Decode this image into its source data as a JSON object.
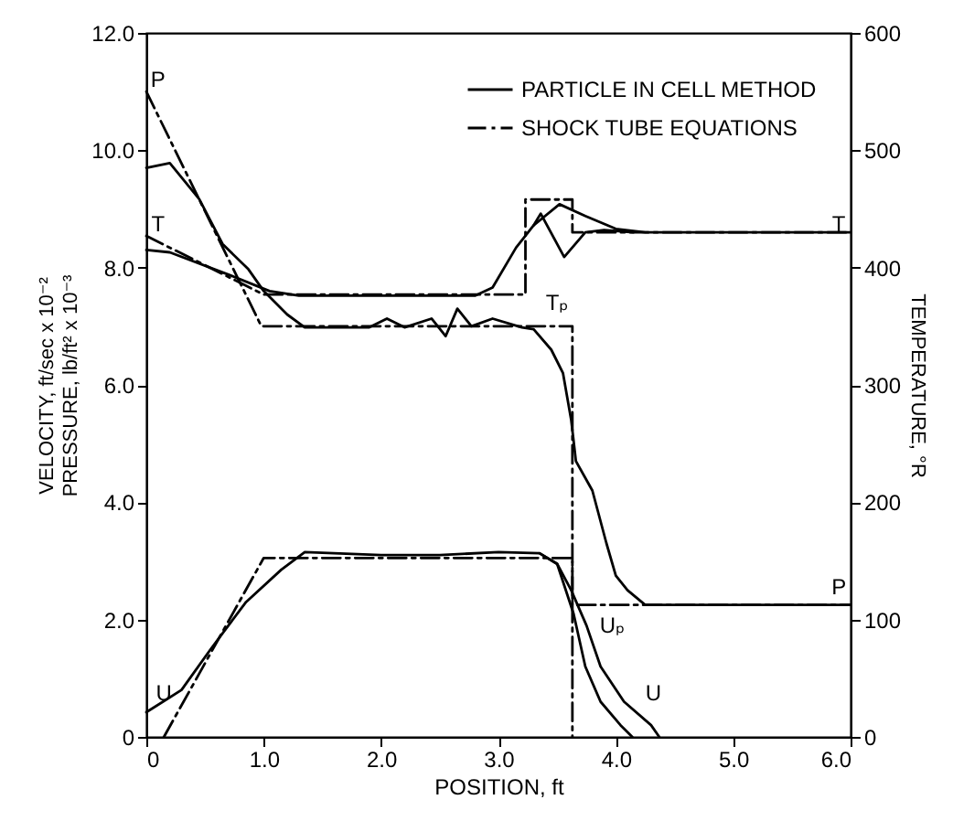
{
  "chart_data": {
    "type": "line",
    "xlabel": "POSITION, ft",
    "ylabel": "VELOCITY, ft/sec x 10⁻²\nPRESSURE, lb/ft² x 10⁻³",
    "y2label": "TEMPERATURE, °R",
    "xlim": [
      0,
      6
    ],
    "xticks": [
      0,
      {
        "value": 1,
        "label": "1.0"
      },
      {
        "value": 2,
        "label": "2.0"
      },
      {
        "value": 3,
        "label": "3.0"
      },
      {
        "value": 4,
        "label": "4.0"
      },
      {
        "value": 5,
        "label": "5.0"
      },
      {
        "value": 6,
        "label": "6.0"
      }
    ],
    "ylim": [
      0,
      12
    ],
    "yticks": [
      0,
      {
        "value": 2,
        "label": "2.0"
      },
      {
        "value": 4,
        "label": "4.0"
      },
      {
        "value": 6,
        "label": "6.0"
      },
      {
        "value": 8,
        "label": "8.0"
      },
      {
        "value": 10,
        "label": "10.0"
      },
      {
        "value": 12,
        "label": "12.0"
      }
    ],
    "y2lim": [
      0,
      600
    ],
    "y2ticks": [
      0,
      100,
      200,
      300,
      400,
      500,
      600
    ],
    "grid": false,
    "legend": "top right",
    "series": [
      {
        "name": "PARTICLE IN CELL METHOD",
        "color": "#000000",
        "line_style": "solid",
        "x": [
          0,
          0.2,
          0.45,
          0.65,
          0.87,
          1.0,
          1.2,
          1.35,
          1.9,
          2.05,
          2.2,
          2.43,
          2.55,
          2.65,
          2.77,
          2.95,
          3.2,
          3.3,
          3.45,
          3.55,
          3.62,
          3.66,
          3.8,
          3.92,
          4.0,
          4.1,
          4.25,
          6.0
        ],
        "values": [
          9.7,
          9.78,
          9.17,
          8.4,
          7.97,
          7.6,
          7.2,
          6.98,
          6.98,
          7.13,
          6.98,
          7.13,
          6.83,
          7.3,
          7.0,
          7.13,
          6.98,
          6.95,
          6.6,
          6.2,
          5.4,
          4.7,
          4.2,
          3.3,
          2.75,
          2.5,
          2.25,
          2.25
        ]
      },
      {
        "color": "#000000",
        "line_style": "solid",
        "axis": "y2",
        "x": [
          0,
          0.2,
          0.7,
          1.05,
          1.3,
          2.8,
          2.95,
          3.15,
          3.3,
          3.52,
          3.74,
          4.0,
          4.25,
          6.0
        ],
        "values": [
          415,
          413,
          394,
          380,
          376,
          376,
          383,
          417,
          436,
          454,
          444,
          433,
          430,
          430
        ]
      },
      {
        "color": "#000000",
        "line_style": "solid",
        "axis": "y2",
        "x": [
          3.3,
          3.36,
          3.56,
          3.74,
          3.9,
          4.15
        ],
        "values": [
          436,
          446,
          409,
          430,
          432,
          430
        ]
      },
      {
        "color": "#000000",
        "line_style": "solid",
        "x": [
          0,
          0.3,
          0.55,
          0.85,
          1.15,
          1.35,
          2.0,
          2.5,
          3.0,
          3.35,
          3.5,
          3.62,
          3.75,
          3.87,
          4.07,
          4.3,
          4.37
        ],
        "values": [
          0.42,
          0.8,
          1.5,
          2.3,
          2.85,
          3.15,
          3.1,
          3.1,
          3.15,
          3.13,
          2.95,
          2.5,
          1.9,
          1.2,
          0.6,
          0.2,
          0
        ]
      },
      {
        "color": "#000000",
        "line_style": "solid",
        "x": [
          3.35,
          3.5,
          3.64,
          3.74,
          3.87,
          4.04,
          4.14
        ],
        "values": [
          3.13,
          2.95,
          2.1,
          1.2,
          0.6,
          0.2,
          0
        ]
      },
      {
        "name": "SHOCK TUBE EQUATIONS",
        "color": "#000000",
        "line_style": "dashdot",
        "x": [
          0,
          0.98,
          3.63,
          3.63,
          6.0
        ],
        "values": [
          11.0,
          7.0,
          7.0,
          2.25,
          2.25
        ]
      },
      {
        "color": "#000000",
        "line_style": "dashdot",
        "axis": "y2",
        "x": [
          0,
          1.0,
          3.23,
          3.23,
          3.63,
          3.63,
          6.0
        ],
        "values": [
          427,
          377,
          377,
          458,
          458,
          430,
          430
        ]
      },
      {
        "color": "#000000",
        "line_style": "dashdot",
        "x": [
          0.15,
          1.0,
          3.63,
          3.63
        ],
        "values": [
          0,
          3.05,
          3.05,
          0
        ]
      }
    ],
    "annotations": [
      "P",
      "T",
      "U",
      "Tₚ",
      "T",
      "P",
      "Uₚ",
      "U"
    ]
  }
}
